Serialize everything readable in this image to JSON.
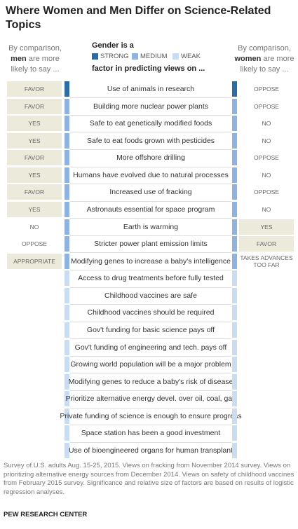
{
  "title": "Where Women and Men Differ on Science-Related Topics",
  "men_header": {
    "pre": "By comparison,",
    "emphasis": "men",
    "post": "are more likely to say ..."
  },
  "legend": {
    "title": "Gender is a",
    "items": [
      {
        "label": "STRONG",
        "color": "#2d6ca2"
      },
      {
        "label": "MEDIUM",
        "color": "#8fb3de"
      },
      {
        "label": "WEAK",
        "color": "#cadcf0"
      }
    ],
    "subtitle": "factor in predicting views on ..."
  },
  "women_header": {
    "pre": "By comparison,",
    "emphasis": "women",
    "post": "are more likely to say ..."
  },
  "rows": [
    {
      "topic": "Use of animals in research",
      "men": "FAVOR",
      "women": "OPPOSE",
      "strength": 0,
      "highlight": "men"
    },
    {
      "topic": "Building more nuclear power plants",
      "men": "FAVOR",
      "women": "OPPOSE",
      "strength": 1,
      "highlight": "men"
    },
    {
      "topic": "Safe to eat genetically modified foods",
      "men": "YES",
      "women": "NO",
      "strength": 1,
      "highlight": "men"
    },
    {
      "topic": "Safe to eat foods grown with pesticides",
      "men": "YES",
      "women": "NO",
      "strength": 1,
      "highlight": "men"
    },
    {
      "topic": "More offshore drilling",
      "men": "FAVOR",
      "women": "OPPOSE",
      "strength": 1,
      "highlight": "men"
    },
    {
      "topic": "Humans have evolved due to natural processes",
      "men": "YES",
      "women": "NO",
      "strength": 1,
      "highlight": "men"
    },
    {
      "topic": "Increased use of fracking",
      "men": "FAVOR",
      "women": "OPPOSE",
      "strength": 1,
      "highlight": "men"
    },
    {
      "topic": "Astronauts essential for space program",
      "men": "YES",
      "women": "NO",
      "strength": 1,
      "highlight": "men"
    },
    {
      "topic": "Earth is warming",
      "men": "NO",
      "women": "YES",
      "strength": 1,
      "highlight": "women"
    },
    {
      "topic": "Stricter power plant emission limits",
      "men": "OPPOSE",
      "women": "FAVOR",
      "strength": 1,
      "highlight": "women"
    },
    {
      "topic": "Modifying genes to increase a baby's intelligence",
      "men": "APPROPRIATE",
      "women": "TAKES ADVANCES TOO FAR",
      "strength": 1,
      "highlight": "men"
    },
    {
      "topic": "Access to drug treatments before fully tested",
      "strength": 2
    },
    {
      "topic": "Childhood vaccines are safe",
      "strength": 2
    },
    {
      "topic": "Childhood vaccines should be required",
      "strength": 2
    },
    {
      "topic": "Gov't funding for basic science pays off",
      "strength": 2
    },
    {
      "topic": "Gov't funding of engineering and tech. pays off",
      "strength": 2
    },
    {
      "topic": "Growing world population will be a major problem",
      "strength": 2
    },
    {
      "topic": "Modifying genes to reduce a baby's risk of disease",
      "strength": 2
    },
    {
      "topic": "Prioritize alternative energy devel. over oil, coal, gas",
      "strength": 2
    },
    {
      "topic": "Private funding of science is enough to ensure progress",
      "strength": 2
    },
    {
      "topic": "Space station has been a good investment",
      "strength": 2
    },
    {
      "topic": "Use of bioengineered organs for human transplant",
      "strength": 2
    }
  ],
  "note": "Survey of U.S. adults Aug. 15-25, 2015. Views on fracking from November 2014 survey. Views on prioritizing alternative energy sources from December 2014. Views on safety of childhood vaccines from February 2015 survey. Significance and relative size of factors are based on results of logistic regression analyses.",
  "source": "PEW RESEARCH CENTER"
}
